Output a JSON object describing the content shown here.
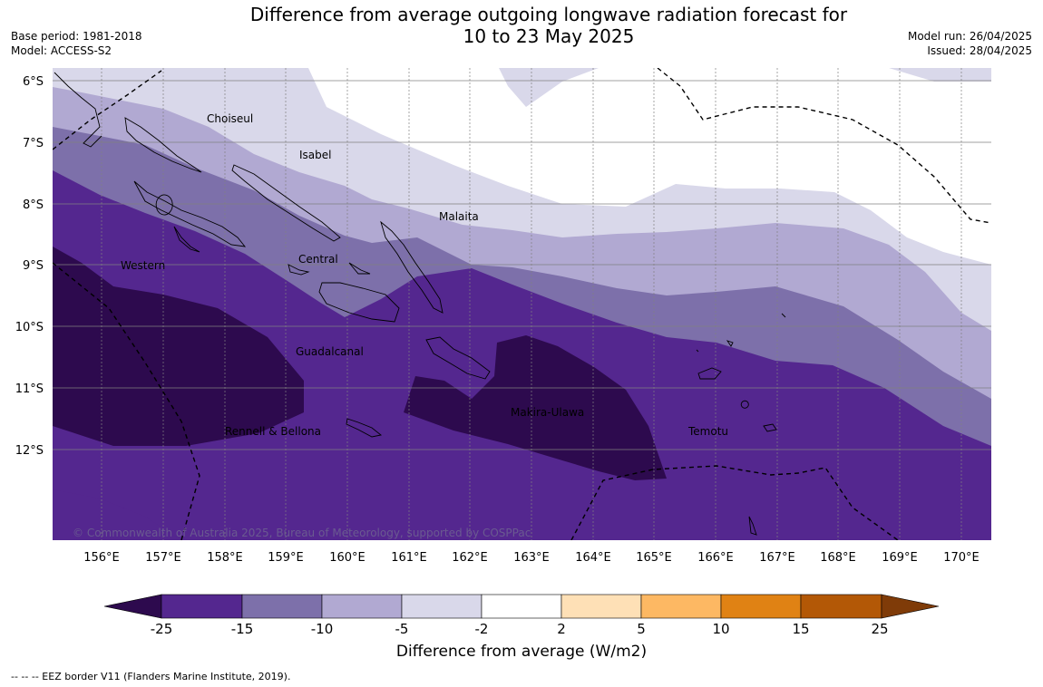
{
  "header": {
    "title_line1": "Difference from average outgoing longwave radiation forecast for",
    "title_line2": "10 to 23 May 2025",
    "base_period": "Base period: 1981-2018",
    "model": "Model: ACCESS-S2",
    "model_run": "Model run: 26/04/2025",
    "issued": "Issued: 28/04/2025"
  },
  "map": {
    "lat_labels": [
      "6°S",
      "7°S",
      "8°S",
      "9°S",
      "10°S",
      "11°S",
      "12°S"
    ],
    "lon_labels": [
      "156°E",
      "157°E",
      "158°E",
      "159°E",
      "160°E",
      "161°E",
      "162°E",
      "163°E",
      "164°E",
      "165°E",
      "166°E",
      "167°E",
      "168°E",
      "169°E",
      "170°E"
    ],
    "regions": [
      "Choiseul",
      "Isabel",
      "Malaita",
      "Western",
      "Central",
      "Guadalcanal",
      "Makira-Ulawa",
      "Rennell & Bellona",
      "Temotu"
    ],
    "copyright": "© Commonwealth of Australia 2025, Bureau of Meteorology, supported by COSPPac"
  },
  "colorbar": {
    "ticks": [
      "-25",
      "-15",
      "-10",
      "-5",
      "-2",
      "2",
      "5",
      "10",
      "15",
      "25"
    ],
    "colors": [
      "#2d0a4e",
      "#54278f",
      "#7d70aa",
      "#b1a9d2",
      "#d9d8ea",
      "#ffffff",
      "#fee0b6",
      "#fdb863",
      "#e08214",
      "#b35806",
      "#7f3b08"
    ],
    "title": "Difference from average (W/m2)"
  },
  "footer": {
    "eez_note": "-- -- -- EEZ border V11 (Flanders Marine Institute, 2019)."
  }
}
